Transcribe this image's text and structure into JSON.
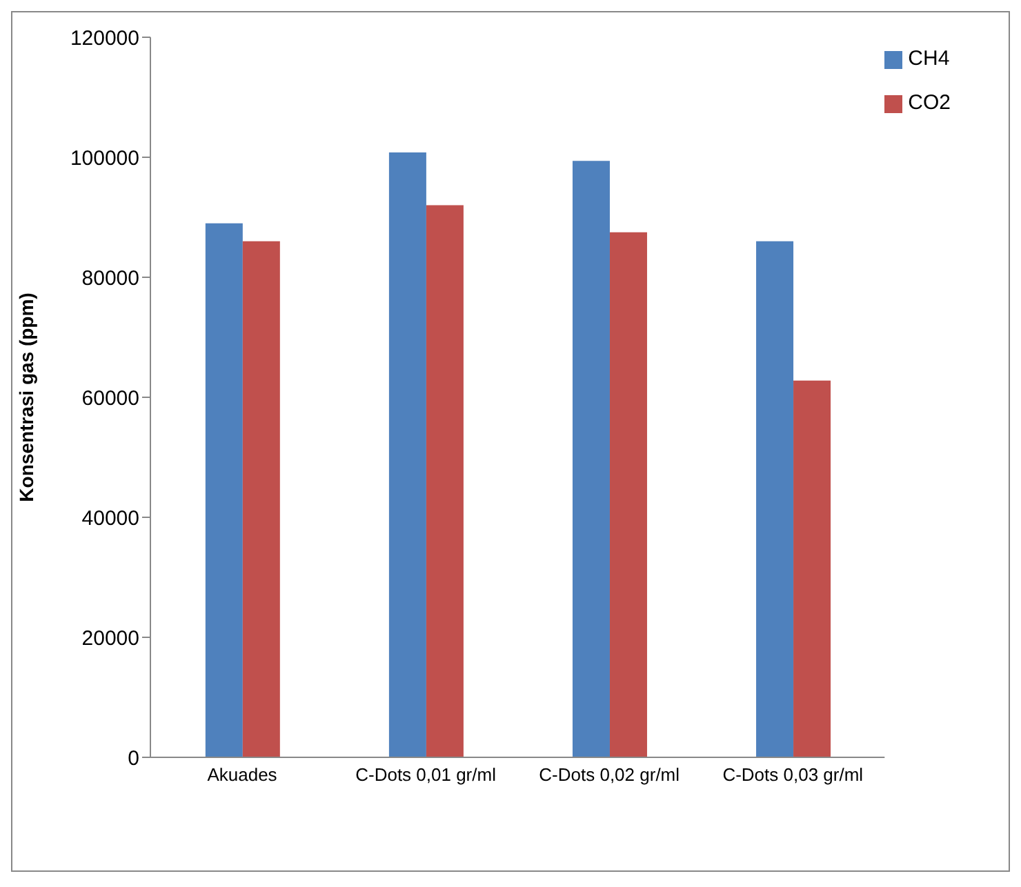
{
  "chart_data": {
    "type": "bar",
    "ylabel": "Konsentrasi gas (ppm)",
    "categories": [
      "Akuades",
      "C-Dots 0,01  gr/ml",
      "C-Dots 0,02  gr/ml",
      "C-Dots 0,03  gr/ml"
    ],
    "series": [
      {
        "name": "CH4",
        "color": "#4f81bd",
        "values": [
          89000,
          100800,
          99400,
          86000
        ]
      },
      {
        "name": "CO2",
        "color": "#c0504d",
        "values": [
          86000,
          92000,
          87500,
          62800
        ]
      }
    ],
    "ylim": [
      0,
      120000
    ],
    "yticks": [
      0,
      20000,
      40000,
      60000,
      80000,
      100000,
      120000
    ],
    "grid": false,
    "legend": "top right"
  }
}
